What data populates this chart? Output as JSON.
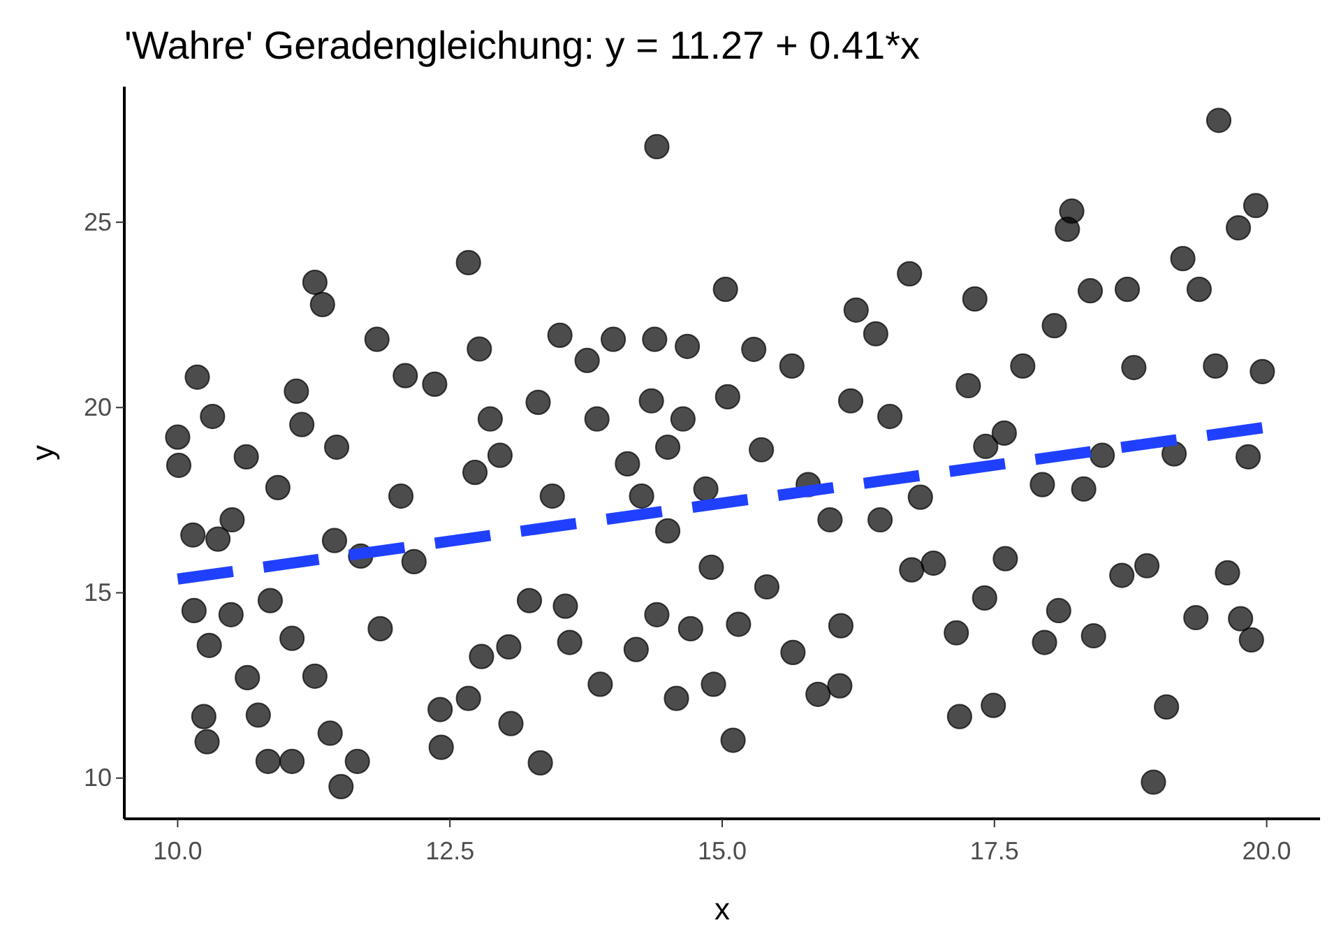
{
  "chart_data": {
    "type": "scatter",
    "title": "'Wahre' Geradengleichung: y = 11.27 + 0.41*x",
    "xlabel": "x",
    "ylabel": "y",
    "xlim": [
      9.51,
      20.49
    ],
    "ylim": [
      8.9,
      28.66
    ],
    "xticks": [
      {
        "value": 10,
        "label": "10.0"
      },
      {
        "value": 12.5,
        "label": "12.5"
      },
      {
        "value": 15,
        "label": "15.0"
      },
      {
        "value": 17.5,
        "label": "17.5"
      },
      {
        "value": 20,
        "label": "20.0"
      }
    ],
    "yticks": [
      10,
      15,
      20,
      25
    ],
    "grid": false,
    "series": [
      {
        "color": "#000000",
        "marker": "circle",
        "x": [
          10.0,
          10.01,
          10.18,
          10.14,
          10.15,
          10.24,
          10.27,
          10.32,
          10.29,
          10.37,
          10.49,
          10.5,
          10.63,
          10.64,
          10.74,
          10.83,
          10.85,
          10.92,
          11.05,
          11.05,
          11.09,
          11.14,
          11.26,
          11.33,
          11.26,
          11.4,
          11.46,
          11.44,
          11.5,
          11.65,
          11.68,
          11.83,
          11.86,
          12.05,
          12.09,
          12.17,
          12.36,
          12.42,
          12.41,
          12.67,
          12.67,
          12.77,
          12.73,
          12.87,
          12.79,
          12.96,
          13.04,
          13.06,
          13.23,
          13.31,
          13.33,
          13.44,
          13.51,
          13.56,
          13.6,
          13.76,
          13.85,
          13.88,
          14.0,
          14.13,
          14.21,
          14.26,
          14.35,
          14.4,
          14.38,
          14.4,
          14.5,
          14.5,
          14.58,
          14.68,
          14.64,
          14.71,
          14.85,
          14.9,
          14.92,
          15.03,
          15.05,
          15.1,
          15.15,
          15.29,
          15.36,
          15.41,
          15.64,
          15.65,
          15.79,
          15.88,
          15.99,
          16.09,
          16.08,
          16.18,
          16.23,
          16.41,
          16.45,
          16.54,
          16.72,
          16.74,
          16.82,
          16.94,
          17.15,
          17.18,
          17.26,
          17.32,
          17.42,
          17.49,
          17.41,
          17.59,
          17.6,
          17.76,
          17.94,
          17.96,
          18.05,
          18.09,
          18.17,
          18.21,
          18.32,
          18.41,
          18.38,
          18.49,
          18.67,
          18.72,
          18.78,
          18.9,
          18.96,
          19.08,
          19.15,
          19.23,
          19.35,
          19.38,
          19.53,
          19.56,
          19.64,
          19.74,
          19.76,
          19.83,
          19.9,
          19.86,
          19.96
        ],
        "values": [
          19.2,
          18.44,
          20.82,
          16.56,
          14.52,
          11.66,
          10.98,
          19.76,
          13.58,
          16.45,
          14.41,
          16.97,
          18.67,
          12.71,
          11.7,
          10.45,
          14.79,
          17.84,
          10.45,
          13.77,
          20.44,
          19.54,
          23.38,
          22.78,
          12.75,
          11.21,
          18.93,
          16.41,
          9.77,
          10.45,
          15.99,
          21.84,
          14.03,
          17.61,
          20.86,
          15.84,
          20.63,
          10.83,
          11.85,
          23.91,
          12.15,
          21.58,
          18.25,
          19.69,
          13.28,
          18.71,
          13.54,
          11.47,
          14.79,
          20.14,
          10.41,
          17.61,
          21.95,
          14.64,
          13.66,
          21.27,
          19.69,
          12.53,
          21.84,
          18.48,
          13.47,
          17.61,
          20.18,
          27.04,
          21.84,
          14.41,
          18.93,
          16.67,
          12.15,
          21.65,
          19.69,
          14.03,
          17.8,
          15.69,
          12.53,
          23.19,
          20.29,
          11.02,
          14.15,
          21.57,
          18.86,
          15.16,
          21.12,
          13.39,
          17.92,
          12.26,
          16.97,
          14.11,
          12.49,
          20.18,
          22.63,
          21.99,
          16.97,
          19.76,
          23.61,
          15.62,
          17.58,
          15.8,
          13.92,
          11.66,
          20.59,
          22.93,
          18.95,
          11.96,
          14.86,
          19.31,
          15.92,
          21.12,
          17.92,
          13.66,
          22.21,
          14.52,
          24.81,
          25.3,
          17.8,
          13.84,
          23.15,
          18.71,
          15.47,
          23.19,
          21.08,
          15.73,
          9.89,
          11.92,
          18.75,
          24.02,
          14.33,
          23.19,
          21.12,
          27.75,
          15.54,
          24.85,
          14.3,
          18.67,
          25.45,
          13.73,
          20.97
        ]
      },
      {
        "type": "line",
        "color": "#2040ff",
        "line_style": "dashed",
        "x": [
          10,
          20
        ],
        "values": [
          15.37,
          19.47
        ]
      }
    ]
  }
}
